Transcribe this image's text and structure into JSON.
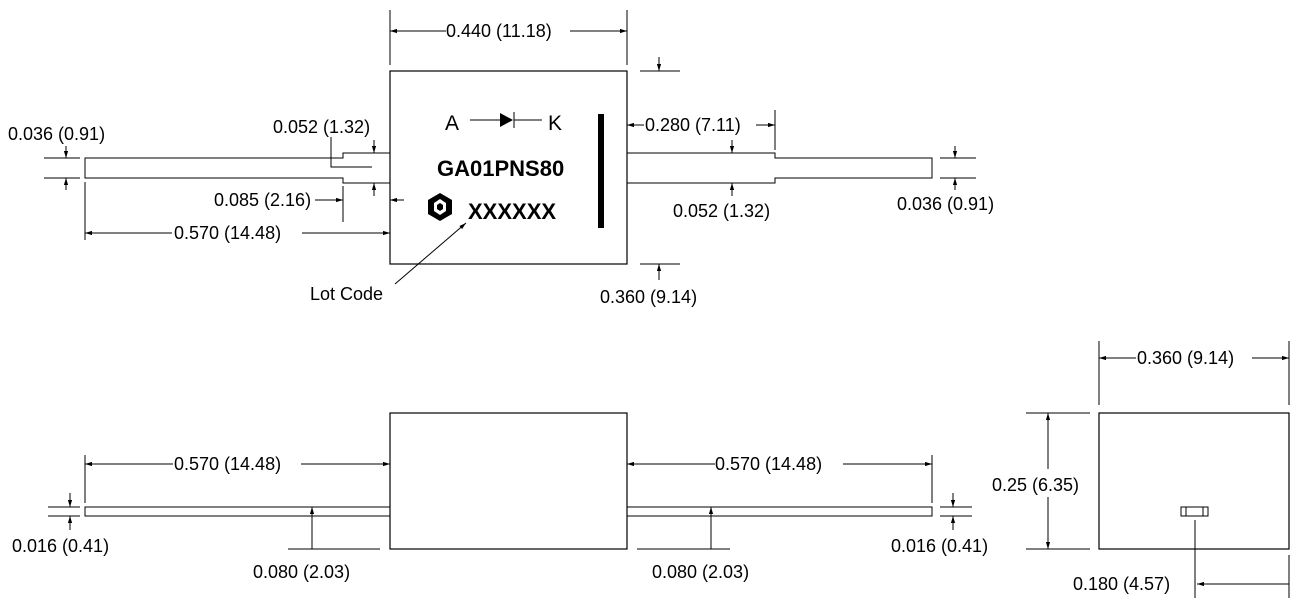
{
  "top_view": {
    "body_width": "0.440 (11.18)",
    "lead_thickness_left": "0.036 (0.91)",
    "lead_step_height": "0.052 (1.32)",
    "lead_step_length": "0.085 (2.16)",
    "lead_length_left": "0.570 (14.48)",
    "lead_step_position_right": "0.280 (7.11)",
    "lead_step_height_right": "0.052 (1.32)",
    "lead_thickness_right": "0.036 (0.91)",
    "body_height": "0.360 (9.14)",
    "polarity_anode": "A",
    "polarity_cathode": "K",
    "part_number": "GA01PNS80",
    "lot_code_mark": "XXXXXX",
    "lot_code_label": "Lot Code"
  },
  "side_view": {
    "lead_length_left": "0.570 (14.48)",
    "lead_length_right": "0.570 (14.48)",
    "lead_thickness_left": "0.016 (0.41)",
    "lead_thickness_right": "0.016 (0.41)",
    "lead_height_left": "0.080 (2.03)",
    "lead_height_right": "0.080 (2.03)"
  },
  "end_view": {
    "width": "0.360 (9.14)",
    "height": "0.25 (6.35)",
    "lead_position": "0.180 (4.57)"
  }
}
